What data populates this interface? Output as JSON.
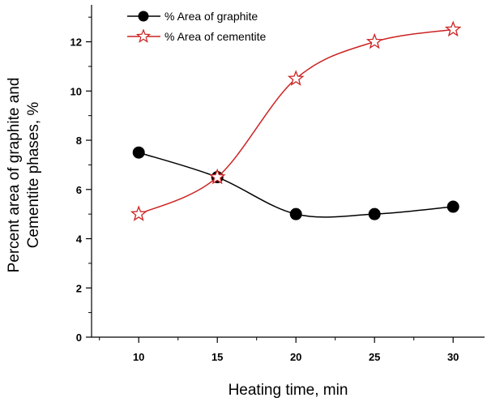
{
  "chart_data": {
    "type": "line",
    "xlabel": "Heating time, min",
    "ylabel_lines": [
      "Percent area of graphite and",
      "Cementite phases, %"
    ],
    "xlim": [
      7,
      32
    ],
    "ylim": [
      0,
      13.5
    ],
    "x_ticks": [
      10,
      15,
      20,
      25,
      30
    ],
    "y_ticks": [
      0,
      2,
      4,
      6,
      8,
      10,
      12
    ],
    "legend_position": "top-left",
    "grid": false,
    "series": [
      {
        "name": "% Area of graphite",
        "marker": "filled-circle",
        "color": "#000000",
        "x": [
          10,
          15,
          20,
          25,
          30
        ],
        "y": [
          7.5,
          6.5,
          5.0,
          5.0,
          5.3
        ]
      },
      {
        "name": "% Area of cementite",
        "marker": "open-star",
        "color": "#cc2222",
        "x": [
          10,
          15,
          20,
          25,
          30
        ],
        "y": [
          5.0,
          6.5,
          10.5,
          12.0,
          12.5
        ]
      }
    ]
  }
}
